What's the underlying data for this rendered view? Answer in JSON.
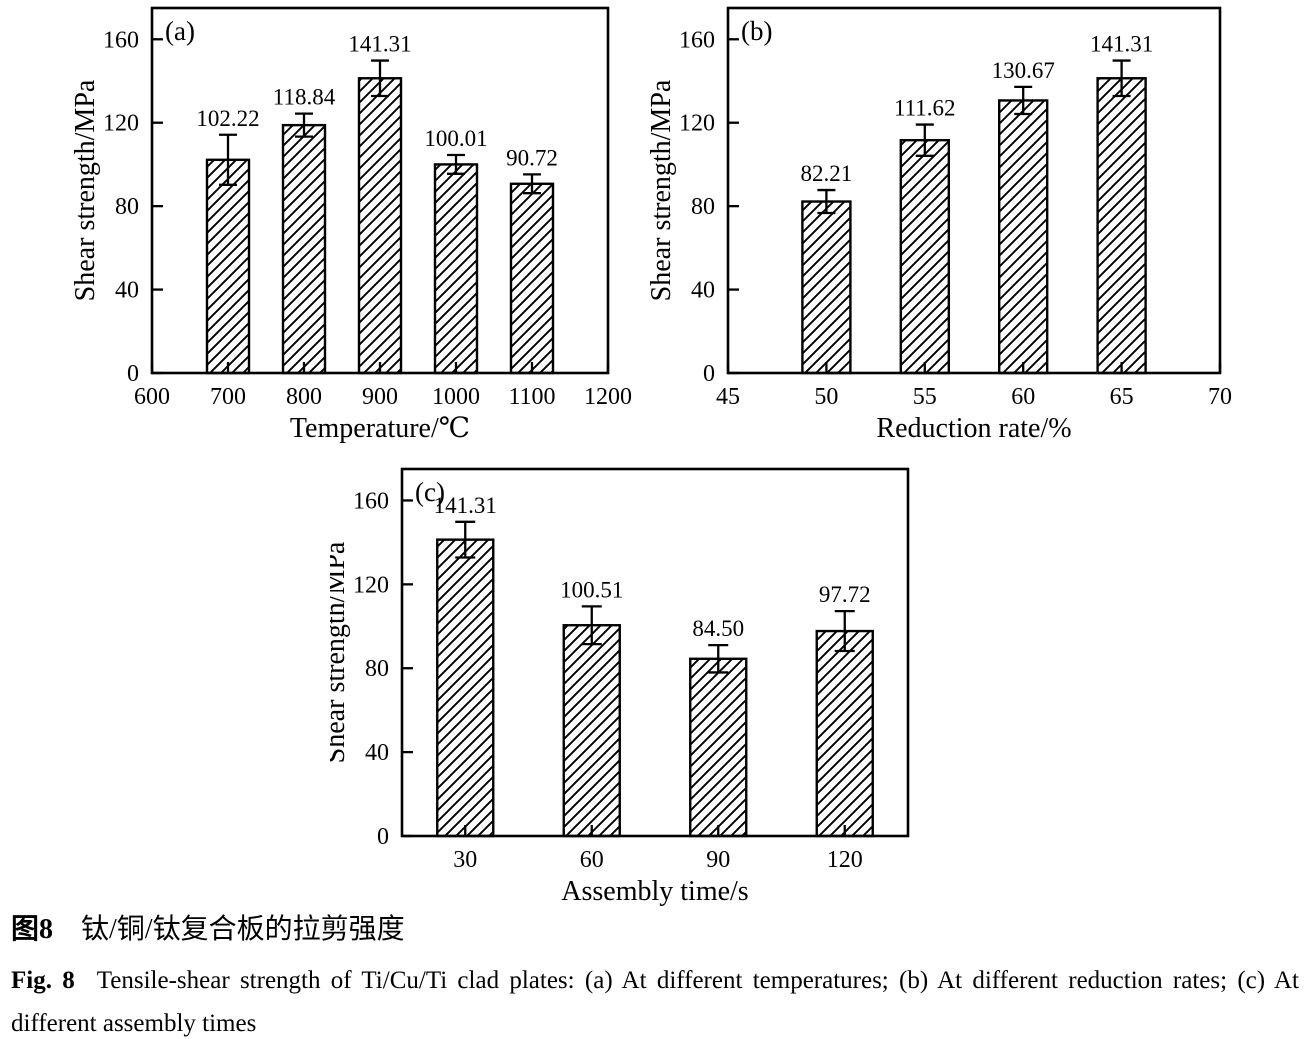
{
  "page": {
    "background": "#ffffff",
    "ink": "#000000"
  },
  "figure": {
    "caption_zh_label": "图8",
    "caption_zh_text": "钛/铜/钛复合板的拉剪强度",
    "caption_en_label": "Fig. 8",
    "caption_en_text": "Tensile-shear strength of Ti/Cu/Ti clad plates: (a) At different temperatures; (b) At different reduction rates; (c) At different assembly times"
  },
  "chart_data": [
    {
      "id": "a",
      "type": "bar",
      "panel_label": "(a)",
      "xlabel": "Temperature/℃",
      "ylabel": "Shear strength/MPa",
      "xlim": [
        600,
        1200
      ],
      "x_ticks": [
        600,
        700,
        800,
        900,
        1000,
        1100,
        1200
      ],
      "ylim": [
        0,
        175
      ],
      "y_ticks": [
        0,
        40,
        80,
        120,
        160
      ],
      "categories": [
        700,
        800,
        900,
        1000,
        1100
      ],
      "values": [
        102.22,
        118.84,
        141.31,
        100.01,
        90.72
      ],
      "value_labels": [
        "102.22",
        "118.84",
        "141.31",
        "100.01",
        "90.72"
      ],
      "errors": [
        12,
        5.5,
        8.5,
        4.5,
        4.5
      ],
      "grid": false,
      "legend": "none",
      "bar_style": "black-diagonal-hatch"
    },
    {
      "id": "b",
      "type": "bar",
      "panel_label": "(b)",
      "xlabel": "Reduction rate/%",
      "ylabel": "Shear strength/MPa",
      "xlim": [
        45,
        70
      ],
      "x_ticks": [
        45,
        50,
        55,
        60,
        65,
        70
      ],
      "ylim": [
        0,
        175
      ],
      "y_ticks": [
        0,
        40,
        80,
        120,
        160
      ],
      "categories": [
        50,
        55,
        60,
        65
      ],
      "values": [
        82.21,
        111.62,
        130.67,
        141.31
      ],
      "value_labels": [
        "82.21",
        "111.62",
        "130.67",
        "141.31"
      ],
      "errors": [
        5.5,
        7.5,
        6.5,
        8.5
      ],
      "grid": false,
      "legend": "none",
      "bar_style": "black-diagonal-hatch"
    },
    {
      "id": "c",
      "type": "bar",
      "panel_label": "(c)",
      "xlabel": "Assembly time/s",
      "ylabel": "Shear strength/MPa",
      "x_ticks": [
        30,
        60,
        90,
        120
      ],
      "ylim": [
        0,
        175
      ],
      "y_ticks": [
        0,
        40,
        80,
        120,
        160
      ],
      "categories": [
        30,
        60,
        90,
        120
      ],
      "values": [
        141.31,
        100.51,
        84.5,
        97.72
      ],
      "value_labels": [
        "141.31",
        "100.51",
        "84.50",
        "97.72"
      ],
      "errors": [
        8.5,
        9,
        6.5,
        9.5
      ],
      "grid": false,
      "legend": "none",
      "bar_style": "black-diagonal-hatch"
    }
  ]
}
